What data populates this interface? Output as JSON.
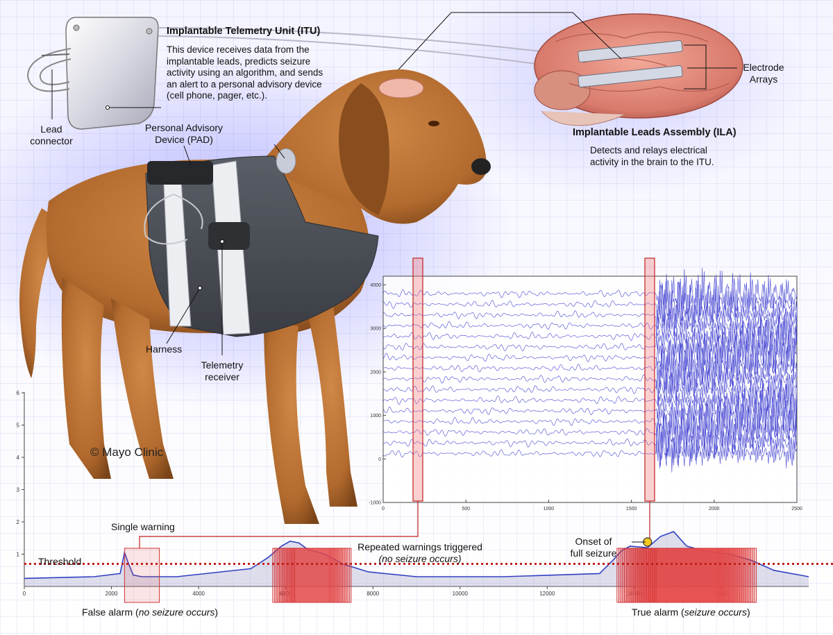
{
  "itu": {
    "title": "Implantable Telemetry Unit (ITU)",
    "desc_lines": [
      "This device receives data from the",
      "implantable leads, predicts seizure",
      "activity using an algorithm, and sends",
      "an alert to a personal advisory device",
      "(cell phone, pager, etc.)."
    ]
  },
  "lead_connector": [
    "Lead",
    "connector"
  ],
  "pad": [
    "Personal Advisory",
    "Device (PAD)"
  ],
  "electrode_arrays": [
    "Electrode",
    "Arrays"
  ],
  "ila": {
    "title": "Implantable Leads Assembly (ILA)",
    "desc_lines": [
      "Detects and relays electrical",
      "activity in the brain to the ITU."
    ]
  },
  "harness": "Harness",
  "telemetry_receiver": [
    "Telemetry",
    "receiver"
  ],
  "copyright": "© Mayo Clinic",
  "single_warning": "Single warning",
  "threshold": "Threshold",
  "repeated_warnings": "Repeated warnings triggered",
  "no_seizure_paren": "(no seizure occurs)",
  "onset": [
    "Onset of",
    "full seizure"
  ],
  "false_alarm": {
    "prefix": "False alarm (",
    "ital": "no seizure occurs",
    "suffix": ")"
  },
  "true_alarm": {
    "prefix": "True alarm (",
    "ital": "seizure occurs",
    "suffix": ")"
  },
  "colors": {
    "trace": "#4040d0",
    "threshold": "#c0201a",
    "warning_box": "#d03030",
    "highlight": "#f4c820"
  },
  "chart_data": [
    {
      "type": "line",
      "name": "eeg-traces",
      "x_ticks": [
        0,
        500,
        1000,
        1500,
        2000,
        2500
      ],
      "y_ticks": [
        -1000,
        0,
        1000,
        2000,
        3000,
        4000
      ],
      "xlim": [
        0,
        2500
      ],
      "ylim": [
        -1000,
        4200
      ],
      "channel_count": 16,
      "seizure_onset_x": 1650,
      "highlight_windows_x": [
        [
          -120,
          60
        ],
        [
          1660,
          1720
        ]
      ]
    },
    {
      "type": "line",
      "name": "seizure-probability",
      "x_ticks": [
        0,
        2000,
        4000,
        6000,
        8000,
        10000,
        12000,
        14000,
        16000
      ],
      "y_ticks": [
        1,
        2,
        3,
        4,
        5,
        6
      ],
      "xlim": [
        0,
        18000
      ],
      "threshold": 0.7,
      "x": [
        0,
        1600,
        2200,
        2300,
        2380,
        2500,
        2700,
        3500,
        5200,
        5600,
        5900,
        6100,
        6300,
        6500,
        6900,
        7300,
        7900,
        9000,
        11000,
        13200,
        13500,
        13700,
        13900,
        14300,
        14600,
        14900,
        15200,
        15600,
        16200,
        16700,
        17200,
        18000
      ],
      "y": [
        0.25,
        0.3,
        0.4,
        1.05,
        0.75,
        0.35,
        0.3,
        0.3,
        0.55,
        0.9,
        1.25,
        1.4,
        1.35,
        1.15,
        1.0,
        0.7,
        0.45,
        0.3,
        0.3,
        0.4,
        0.8,
        1.1,
        1.25,
        1.2,
        1.55,
        1.7,
        1.25,
        1.1,
        1.0,
        0.8,
        0.5,
        0.3
      ],
      "false_alarm_window": [
        2300,
        3100
      ],
      "repeated_window": [
        5700,
        7500
      ],
      "true_alarm_window": [
        13600,
        16800
      ],
      "onset_x": 14300
    }
  ]
}
